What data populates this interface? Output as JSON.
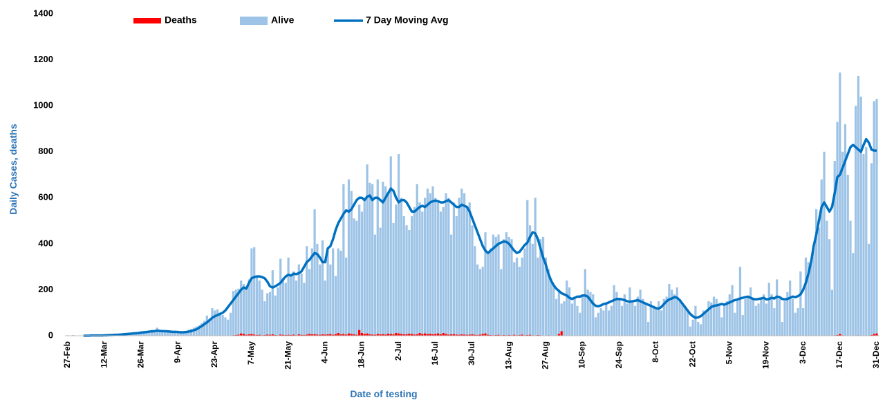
{
  "chart_data": {
    "type": "bar_line",
    "ylabel": "Daily Cases, deaths",
    "xlabel": "Date of testing",
    "ylim": [
      0,
      1400
    ],
    "yticks": [
      0,
      200,
      400,
      600,
      800,
      1000,
      1200,
      1400
    ],
    "legend": "top",
    "categories": [
      "27-Feb",
      null,
      null,
      null,
      null,
      null,
      null,
      null,
      null,
      null,
      null,
      null,
      null,
      null,
      "12-Mar",
      null,
      null,
      null,
      null,
      null,
      null,
      null,
      null,
      null,
      null,
      null,
      null,
      null,
      "26-Mar",
      null,
      null,
      null,
      null,
      null,
      null,
      null,
      null,
      null,
      null,
      null,
      null,
      null,
      "9-Apr",
      null,
      null,
      null,
      null,
      null,
      null,
      null,
      null,
      null,
      null,
      null,
      null,
      null,
      "23-Apr",
      null,
      null,
      null,
      null,
      null,
      null,
      null,
      null,
      null,
      null,
      null,
      null,
      null,
      "7-May",
      null,
      null,
      null,
      null,
      null,
      null,
      null,
      null,
      null,
      null,
      null,
      null,
      null,
      "21-May",
      null,
      null,
      null,
      null,
      null,
      null,
      null,
      null,
      null,
      null,
      null,
      null,
      null,
      "4-Jun",
      null,
      null,
      null,
      null,
      null,
      null,
      null,
      null,
      null,
      null,
      null,
      null,
      null,
      "18-Jun",
      null,
      null,
      null,
      null,
      null,
      null,
      null,
      null,
      null,
      null,
      null,
      null,
      null,
      "2-Jul",
      null,
      null,
      null,
      null,
      null,
      null,
      null,
      null,
      null,
      null,
      null,
      null,
      null,
      "16-Jul",
      null,
      null,
      null,
      null,
      null,
      null,
      null,
      null,
      null,
      null,
      null,
      null,
      null,
      "30-Jul",
      null,
      null,
      null,
      null,
      null,
      null,
      null,
      null,
      null,
      null,
      null,
      null,
      null,
      "13-Aug",
      null,
      null,
      null,
      null,
      null,
      null,
      null,
      null,
      null,
      null,
      null,
      null,
      null,
      "27-Aug",
      null,
      null,
      null,
      null,
      null,
      null,
      null,
      null,
      null,
      null,
      null,
      null,
      null,
      "10-Sep",
      null,
      null,
      null,
      null,
      null,
      null,
      null,
      null,
      null,
      null,
      null,
      null,
      null,
      "24-Sep",
      null,
      null,
      null,
      null,
      null,
      null,
      null,
      null,
      null,
      null,
      null,
      null,
      null,
      "8-Oct",
      null,
      null,
      null,
      null,
      null,
      null,
      null,
      null,
      null,
      null,
      null,
      null,
      null,
      "22-Oct",
      null,
      null,
      null,
      null,
      null,
      null,
      null,
      null,
      null,
      null,
      null,
      null,
      null,
      "5-Nov",
      null,
      null,
      null,
      null,
      null,
      null,
      null,
      null,
      null,
      null,
      null,
      null,
      null,
      "19-Nov",
      null,
      null,
      null,
      null,
      null,
      null,
      null,
      null,
      null,
      null,
      null,
      null,
      null,
      "3-Dec",
      null,
      null,
      null,
      null,
      null,
      null,
      null,
      null,
      null,
      null,
      null,
      null,
      null,
      "17-Dec",
      null,
      null,
      null,
      null,
      null,
      null,
      null,
      null,
      null,
      null,
      null,
      null,
      null,
      "31-Dec"
    ],
    "series": [
      {
        "name": "Alive",
        "type": "bar",
        "color": "#9dc3e6",
        "values": [
          2,
          0,
          3,
          0,
          1,
          0,
          0,
          1,
          0,
          0,
          1,
          2,
          1,
          2,
          2,
          3,
          4,
          3,
          5,
          6,
          4,
          8,
          7,
          10,
          9,
          12,
          14,
          16,
          18,
          20,
          15,
          22,
          25,
          20,
          35,
          24,
          20,
          18,
          22,
          16,
          15,
          14,
          14,
          12,
          16,
          20,
          25,
          30,
          35,
          40,
          45,
          55,
          65,
          88,
          70,
          120,
          110,
          115,
          100,
          90,
          80,
          70,
          100,
          195,
          200,
          205,
          240,
          225,
          200,
          245,
          380,
          385,
          260,
          240,
          200,
          150,
          185,
          190,
          285,
          175,
          210,
          335,
          250,
          230,
          340,
          260,
          280,
          240,
          310,
          270,
          230,
          390,
          290,
          380,
          550,
          400,
          310,
          415,
          240,
          370,
          310,
          380,
          260,
          380,
          370,
          660,
          340,
          680,
          630,
          510,
          500,
          570,
          540,
          600,
          745,
          665,
          660,
          440,
          680,
          470,
          670,
          650,
          620,
          780,
          490,
          570,
          790,
          600,
          520,
          480,
          460,
          520,
          560,
          660,
          580,
          540,
          600,
          640,
          620,
          650,
          600,
          580,
          540,
          560,
          620,
          600,
          440,
          580,
          520,
          600,
          640,
          620,
          560,
          580,
          480,
          390,
          310,
          290,
          300,
          450,
          360,
          380,
          440,
          430,
          440,
          290,
          420,
          450,
          430,
          420,
          320,
          340,
          300,
          340,
          380,
          590,
          480,
          400,
          600,
          340,
          420,
          430,
          340,
          290,
          250,
          220,
          160,
          200,
          140,
          150,
          240,
          210,
          140,
          170,
          130,
          100,
          180,
          290,
          200,
          190,
          180,
          80,
          100,
          120,
          110,
          140,
          110,
          130,
          220,
          190,
          160,
          130,
          180,
          140,
          210,
          150,
          130,
          170,
          200,
          160,
          140,
          60,
          150,
          130,
          120,
          150,
          110,
          160,
          170,
          225,
          200,
          180,
          210,
          160,
          140,
          130,
          110,
          40,
          70,
          130,
          60,
          50,
          110,
          100,
          150,
          145,
          170,
          160,
          130,
          80,
          140,
          150,
          180,
          220,
          100,
          160,
          300,
          90,
          160,
          170,
          210,
          160,
          130,
          140,
          160,
          180,
          140,
          230,
          180,
          120,
          245,
          160,
          60,
          150,
          190,
          240,
          160,
          100,
          120,
          280,
          120,
          340,
          320,
          310,
          390,
          550,
          470,
          680,
          800,
          500,
          420,
          200,
          760,
          930,
          1145,
          800,
          920,
          700,
          500,
          360,
          1000,
          1130,
          1040,
          790,
          820,
          400,
          750,
          1020,
          1030
        ]
      },
      {
        "name": "Deaths",
        "type": "bar",
        "color": "#ff0000",
        "values": [
          0,
          0,
          0,
          0,
          0,
          0,
          0,
          0,
          0,
          0,
          0,
          0,
          0,
          0,
          0,
          0,
          0,
          0,
          0,
          0,
          0,
          0,
          0,
          0,
          0,
          0,
          0,
          0,
          0,
          0,
          0,
          0,
          0,
          0,
          0,
          0,
          0,
          0,
          0,
          0,
          0,
          0,
          0,
          0,
          0,
          0,
          0,
          0,
          0,
          0,
          0,
          0,
          0,
          0,
          0,
          0,
          0,
          0,
          0,
          0,
          0,
          0,
          0,
          2,
          3,
          5,
          10,
          8,
          4,
          6,
          8,
          5,
          3,
          4,
          2,
          3,
          5,
          4,
          6,
          3,
          2,
          5,
          4,
          3,
          4,
          3,
          5,
          2,
          6,
          4,
          3,
          5,
          8,
          6,
          7,
          5,
          4,
          6,
          5,
          6,
          8,
          4,
          7,
          12,
          6,
          8,
          5,
          10,
          8,
          6,
          4,
          25,
          12,
          8,
          10,
          6,
          5,
          4,
          8,
          6,
          7,
          5,
          9,
          8,
          6,
          12,
          10,
          8,
          6,
          7,
          9,
          8,
          5,
          6,
          12,
          8,
          10,
          7,
          9,
          6,
          8,
          10,
          6,
          12,
          8,
          5,
          6,
          7,
          5,
          4,
          6,
          5,
          4,
          5,
          6,
          4,
          3,
          5,
          8,
          10,
          4,
          3,
          2,
          3,
          4,
          2,
          3,
          2,
          3,
          2,
          4,
          2,
          3,
          5,
          2,
          3,
          4,
          2,
          1,
          3,
          2,
          1,
          1,
          2,
          1,
          0,
          1,
          8,
          20,
          1,
          0,
          1,
          0,
          0,
          1,
          0,
          0,
          0,
          0,
          0,
          0,
          0,
          0,
          0,
          0,
          0,
          0,
          0,
          0,
          0,
          0,
          0,
          0,
          0,
          0,
          0,
          0,
          0,
          0,
          0,
          0,
          0,
          0,
          0,
          0,
          0,
          0,
          0,
          0,
          0,
          0,
          0,
          0,
          0,
          0,
          0,
          0,
          0,
          0,
          0,
          0,
          0,
          0,
          0,
          0,
          0,
          0,
          0,
          0,
          0,
          0,
          0,
          0,
          0,
          0,
          0,
          0,
          0,
          0,
          0,
          0,
          0,
          0,
          0,
          0,
          0,
          0,
          0,
          0,
          0,
          0,
          0,
          0,
          0,
          0,
          0,
          0,
          0,
          0,
          0,
          0,
          0,
          0,
          0,
          0,
          0,
          0,
          0,
          1,
          0,
          0,
          0,
          2,
          3,
          8,
          2,
          1,
          0,
          0,
          0,
          1,
          2,
          1,
          0,
          0,
          0,
          3,
          8,
          10
        ]
      },
      {
        "name": "7 Day Moving Avg",
        "type": "line",
        "color": "#0070c0",
        "values": [
          null,
          null,
          null,
          null,
          null,
          null,
          0,
          0,
          0,
          1,
          1,
          1,
          1,
          1,
          2,
          2,
          3,
          3,
          4,
          4,
          5,
          6,
          7,
          8,
          9,
          10,
          11,
          12,
          14,
          15,
          16,
          18,
          19,
          20,
          22,
          21,
          20,
          20,
          19,
          18,
          17,
          17,
          16,
          15,
          15,
          16,
          18,
          20,
          24,
          28,
          35,
          42,
          50,
          58,
          68,
          78,
          85,
          90,
          95,
          100,
          110,
          125,
          140,
          155,
          170,
          185,
          200,
          210,
          205,
          230,
          250,
          255,
          258,
          258,
          255,
          250,
          235,
          215,
          210,
          215,
          222,
          230,
          245,
          258,
          265,
          262,
          270,
          268,
          272,
          280,
          300,
          320,
          330,
          345,
          360,
          355,
          340,
          320,
          320,
          380,
          390,
          420,
          460,
          490,
          510,
          530,
          545,
          540,
          550,
          570,
          590,
          600,
          600,
          590,
          605,
          610,
          590,
          600,
          600,
          590,
          580,
          600,
          620,
          640,
          630,
          600,
          580,
          590,
          590,
          580,
          560,
          540,
          540,
          550,
          560,
          565,
          560,
          570,
          580,
          585,
          588,
          585,
          580,
          580,
          585,
          590,
          580,
          570,
          560,
          560,
          570,
          565,
          560,
          540,
          510,
          480,
          450,
          420,
          390,
          370,
          360,
          370,
          380,
          390,
          400,
          405,
          410,
          408,
          400,
          385,
          370,
          360,
          365,
          380,
          395,
          405,
          430,
          450,
          445,
          420,
          380,
          340,
          310,
          270,
          240,
          220,
          205,
          195,
          185,
          180,
          175,
          165,
          160,
          165,
          170,
          170,
          175,
          175,
          170,
          155,
          140,
          130,
          128,
          132,
          138,
          140,
          145,
          150,
          155,
          160,
          160,
          158,
          155,
          150,
          148,
          150,
          152,
          155,
          150,
          145,
          140,
          135,
          130,
          125,
          120,
          118,
          125,
          138,
          150,
          158,
          162,
          168,
          165,
          155,
          140,
          125,
          110,
          95,
          85,
          78,
          80,
          85,
          95,
          105,
          115,
          125,
          130,
          132,
          135,
          138,
          135,
          140,
          145,
          150,
          155,
          158,
          162,
          165,
          168,
          170,
          165,
          160,
          158,
          160,
          162,
          165,
          158,
          160,
          165,
          162,
          170,
          168,
          160,
          158,
          160,
          165,
          170,
          168,
          172,
          180,
          200,
          230,
          270,
          320,
          390,
          440,
          500,
          560,
          580,
          560,
          540,
          560,
          620,
          690,
          700,
          730,
          760,
          790,
          820,
          830,
          820,
          810,
          800,
          830,
          855,
          840,
          810,
          805,
          805
        ]
      }
    ]
  }
}
